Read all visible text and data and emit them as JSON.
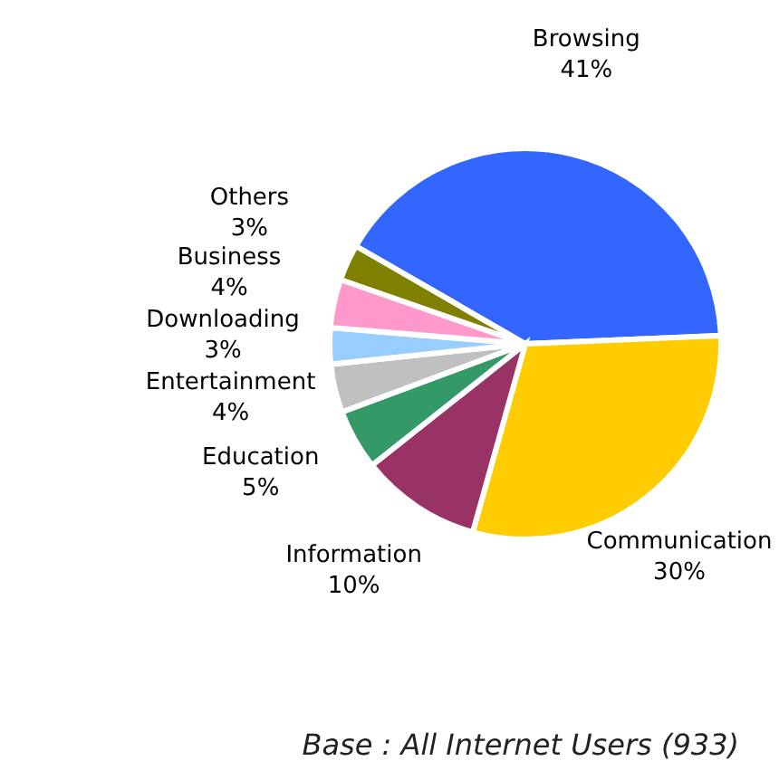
{
  "chart_data": {
    "type": "pie",
    "categories": [
      "Browsing",
      "Communication",
      "Information",
      "Education",
      "Entertainment",
      "Downloading",
      "Business",
      "Others"
    ],
    "values": [
      41,
      30,
      10,
      5,
      4,
      3,
      4,
      3
    ],
    "value_labels": [
      "41%",
      "30%",
      "10%",
      "5%",
      "4%",
      "3%",
      "4%",
      "3%"
    ],
    "colors": [
      "#3366ff",
      "#ffcc00",
      "#993366",
      "#339966",
      "#c0c0c0",
      "#99ccff",
      "#ff99cc",
      "#808000"
    ],
    "legend": false,
    "annotations": [
      "Base : All Internet Users (933)"
    ]
  }
}
